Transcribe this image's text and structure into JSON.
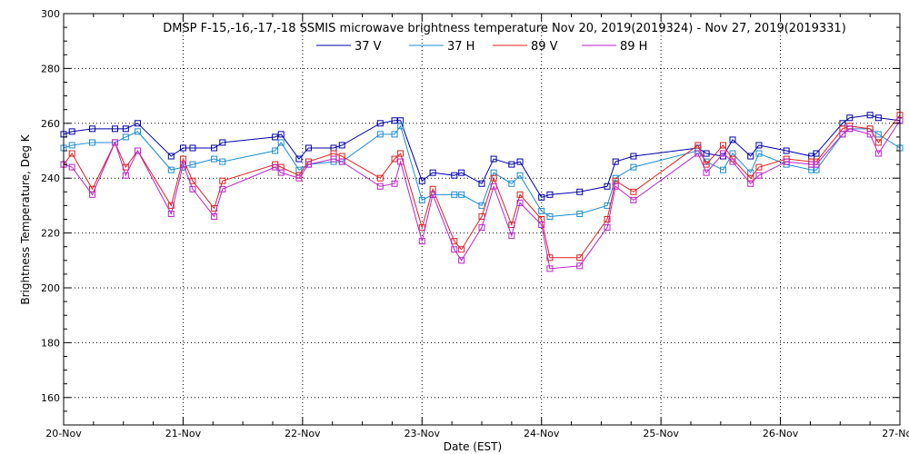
{
  "chart_data": {
    "type": "line",
    "title": "DMSP F-15,-16,-17,-18 SSMIS microwave brightness temperature Nov 20, 2019(2019324) - Nov 27, 2019(2019331)",
    "xlabel": "Date (EST)",
    "ylabel": "Brightness Temperature, Deg K",
    "xlim": [
      0,
      7
    ],
    "ylim": [
      150,
      300
    ],
    "grid": true,
    "legend_position": "top-center",
    "x_ticks": [
      0,
      1,
      2,
      3,
      4,
      5,
      6,
      7
    ],
    "x_tick_labels": [
      "20-Nov",
      "21-Nov",
      "22-Nov",
      "23-Nov",
      "24-Nov",
      "25-Nov",
      "26-Nov",
      "27-Nov"
    ],
    "y_ticks": [
      160,
      180,
      200,
      220,
      240,
      260,
      280,
      300
    ],
    "y_tick_labels": [
      "160",
      "180",
      "200",
      "220",
      "240",
      "260",
      "280",
      "300"
    ],
    "series": [
      {
        "name": "37 V",
        "color": "#0000aa",
        "x": [
          0.0,
          0.07,
          0.24,
          0.43,
          0.52,
          0.62,
          0.9,
          1.0,
          1.08,
          1.26,
          1.33,
          1.77,
          1.82,
          1.97,
          2.05,
          2.26,
          2.33,
          3.0,
          2.65,
          2.77,
          2.82,
          3.09,
          3.27,
          3.33,
          3.5,
          3.6,
          3.75,
          3.82,
          4.0,
          4.07,
          4.32,
          4.55,
          4.62,
          4.77,
          5.31,
          5.38,
          5.52,
          5.6,
          5.75,
          5.82,
          6.05,
          6.26,
          6.3,
          6.52,
          6.58,
          6.75,
          6.82,
          7.0
        ],
        "y": [
          256,
          257,
          258,
          258,
          258,
          260,
          248,
          251,
          251,
          251,
          253,
          255,
          256,
          247,
          251,
          251,
          252,
          239,
          260,
          261,
          261,
          242,
          241,
          242,
          238,
          247,
          245,
          246,
          233,
          234,
          235,
          237,
          246,
          248,
          251,
          249,
          248,
          254,
          248,
          252,
          250,
          248,
          249,
          260,
          262,
          263,
          262,
          261
        ],
        "order_note": ""
      },
      {
        "name": "37 H",
        "color": "#1a8ccc",
        "x": [
          0.0,
          0.07,
          0.24,
          0.43,
          0.52,
          0.62,
          0.9,
          1.0,
          1.08,
          1.26,
          1.33,
          1.77,
          1.82,
          1.97,
          2.05,
          2.26,
          2.33,
          2.65,
          2.77,
          2.82,
          3.0,
          3.09,
          3.27,
          3.33,
          3.5,
          3.6,
          3.75,
          3.82,
          4.0,
          4.07,
          4.32,
          4.55,
          4.62,
          4.77,
          5.31,
          5.38,
          5.52,
          5.6,
          5.75,
          5.82,
          6.05,
          6.26,
          6.3,
          6.52,
          6.58,
          6.75,
          6.82,
          7.0
        ],
        "y": [
          251,
          252,
          253,
          253,
          255,
          257,
          243,
          244,
          245,
          247,
          246,
          250,
          253,
          243,
          245,
          246,
          246,
          256,
          256,
          259,
          232,
          234,
          234,
          234,
          230,
          242,
          238,
          241,
          228,
          226,
          227,
          230,
          240,
          244,
          250,
          246,
          243,
          249,
          242,
          249,
          245,
          243,
          243,
          256,
          258,
          258,
          256,
          251
        ]
      },
      {
        "name": "89 V",
        "color": "#e02020",
        "x": [
          0.0,
          0.07,
          0.24,
          0.43,
          0.52,
          0.62,
          0.9,
          1.0,
          1.08,
          1.26,
          1.33,
          1.77,
          1.82,
          1.97,
          2.05,
          2.26,
          2.33,
          2.65,
          2.77,
          2.82,
          3.0,
          3.09,
          3.27,
          3.33,
          3.5,
          3.6,
          3.75,
          3.82,
          4.0,
          4.07,
          4.32,
          4.55,
          4.62,
          4.77,
          5.31,
          5.38,
          5.52,
          5.6,
          5.75,
          5.82,
          6.05,
          6.26,
          6.3,
          6.52,
          6.58,
          6.75,
          6.82,
          7.0
        ],
        "y": [
          245,
          249,
          236,
          253,
          244,
          250,
          230,
          247,
          239,
          229,
          239,
          245,
          244,
          241,
          246,
          249,
          248,
          240,
          247,
          249,
          222,
          236,
          217,
          214,
          226,
          240,
          223,
          234,
          225,
          211,
          211,
          225,
          239,
          235,
          252,
          245,
          252,
          247,
          240,
          244,
          247,
          246,
          246,
          258,
          259,
          258,
          253,
          263
        ]
      },
      {
        "name": "89 H",
        "color": "#bb22cc",
        "x": [
          0.0,
          0.07,
          0.24,
          0.43,
          0.52,
          0.62,
          0.9,
          1.0,
          1.08,
          1.26,
          1.33,
          1.77,
          1.82,
          1.97,
          2.05,
          2.26,
          2.33,
          2.65,
          2.77,
          2.82,
          3.0,
          3.09,
          3.27,
          3.33,
          3.5,
          3.6,
          3.75,
          3.82,
          4.0,
          4.07,
          4.32,
          4.55,
          4.62,
          4.77,
          5.31,
          5.38,
          5.52,
          5.6,
          5.75,
          5.82,
          6.05,
          6.26,
          6.3,
          6.52,
          6.58,
          6.75,
          6.82,
          7.0
        ],
        "y": [
          245,
          244,
          234,
          253,
          241,
          250,
          227,
          245,
          236,
          226,
          236,
          244,
          242,
          240,
          245,
          247,
          246,
          237,
          238,
          246,
          217,
          234,
          214,
          210,
          222,
          237,
          219,
          231,
          223,
          207,
          208,
          222,
          237,
          232,
          249,
          242,
          249,
          246,
          238,
          241,
          246,
          245,
          245,
          256,
          258,
          256,
          249,
          261
        ]
      }
    ]
  }
}
